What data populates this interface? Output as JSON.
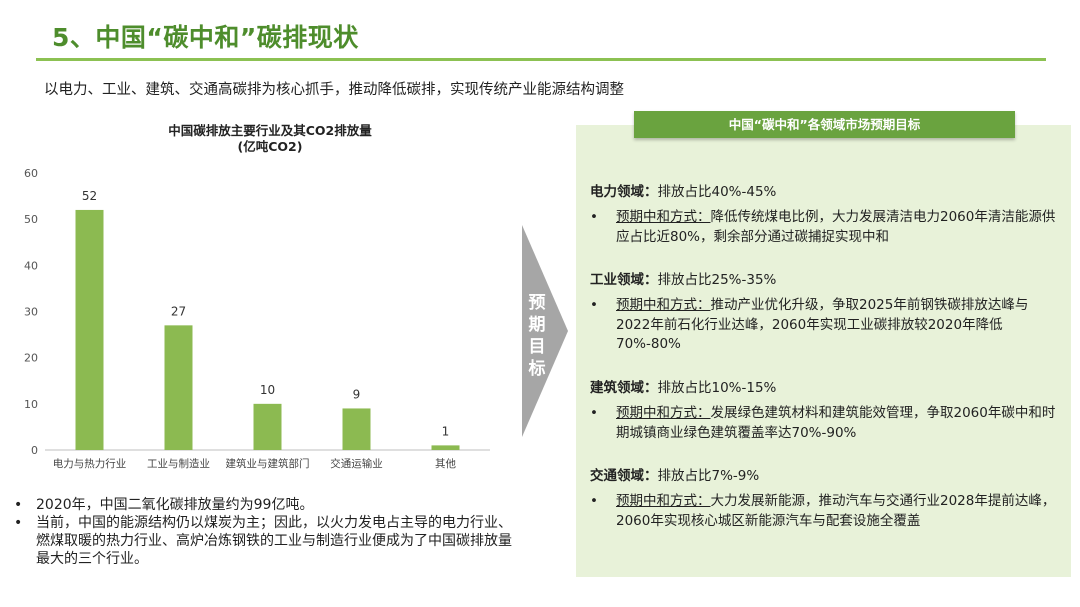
{
  "header": {
    "title": "5、中国“碳中和”碳排现状",
    "subtitle": "以电力、工业、建筑、交通高碳排为核心抓手，推动降低碳排，实现传统产业能源结构调整"
  },
  "chart_data": {
    "type": "bar",
    "title": "中国碳排放主要行业及其CO2排放量",
    "subtitle": "(亿吨CO2)",
    "categories": [
      "电力与热力行业",
      "工业与制造业",
      "建筑业与建筑部门",
      "交通运输业",
      "其他"
    ],
    "values": [
      52,
      27,
      10,
      9,
      1
    ],
    "ylim": [
      0,
      60
    ],
    "yticks": [
      0,
      10,
      20,
      30,
      40,
      50,
      60
    ],
    "grid": false,
    "data_labels": true,
    "bar_color": "#8cba51"
  },
  "notes": [
    "2020年，中国二氧化碳排放量约为99亿吨。",
    "当前，中国的能源结构仍以煤炭为主；因此，以火力发电占主导的电力行业、燃煤取暖的热力行业、高炉冶炼钢铁的工业与制造行业便成为了中国碳排放量最大的三个行业。"
  ],
  "bullet_char": "•",
  "arrow_label": [
    "预",
    "期",
    "目",
    "标"
  ],
  "panel": {
    "banner": "中国“碳中和”各领域市场预期目标",
    "method_label": "预期中和方式：",
    "sectors": [
      {
        "name": "电力领域：",
        "share": "排放占比40%-45%",
        "method": "降低传统煤电比例，大力发展清洁电力2060年清洁能源供应占比近80%，剩余部分通过碳捕捉实现中和"
      },
      {
        "name": "工业领域：",
        "share": "排放占比25%-35%",
        "method": "推动产业优化升级，争取2025年前钢铁碳排放达峰与2022年前石化行业达峰，2060年实现工业碳排放较2020年降低70%-80%"
      },
      {
        "name": "建筑领域：",
        "share": "排放占比10%-15%",
        "method": "发展绿色建筑材料和建筑能效管理，争取2060年碳中和时期城镇商业绿色建筑覆盖率达70%-90%"
      },
      {
        "name": "交通领域：",
        "share": "排放占比7%-9%",
        "method": "大力发展新能源，推动汽车与交通行业2028年提前达峰，2060年实现核心城区新能源汽车与配套设施全覆盖"
      }
    ]
  },
  "colors": {
    "title": "#4e8d2c",
    "rule": "#8cc152",
    "panel_bg": "#e8f2d9",
    "banner_bg": "#6aa33f",
    "arrow": "#a6a6a6"
  }
}
